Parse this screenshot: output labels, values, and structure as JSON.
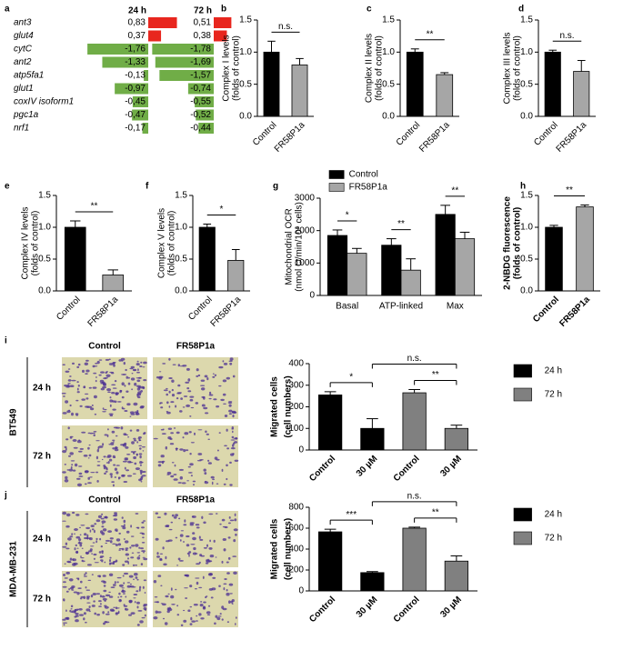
{
  "chart_data": [
    {
      "panel": "a",
      "type": "diverging-bar",
      "categories": [
        "ant3",
        "glut4",
        "cytC",
        "ant2",
        "atp5fa1",
        "glut1",
        "coxIV isoform1",
        "pgc1a",
        "nrf1"
      ],
      "series": [
        {
          "name": "24 h",
          "values": [
            0.83,
            0.37,
            -1.76,
            -1.33,
            -0.13,
            -0.97,
            -0.45,
            -0.47,
            -0.17
          ],
          "value_labels": [
            "0,83",
            "0,37",
            "-1,76",
            "-1,33",
            "-0,13",
            "-0,97",
            "-0,45",
            "-0,47",
            "-0,17"
          ]
        },
        {
          "name": "72 h",
          "values": [
            0.51,
            0.38,
            -1.78,
            -1.69,
            -1.57,
            -0.74,
            -0.55,
            -0.52,
            -0.44
          ],
          "value_labels": [
            "0,51",
            "0,38",
            "-1,78",
            "-1,69",
            "-1,57",
            "-0,74",
            "-0,55",
            "-0,52",
            "-0,44"
          ]
        }
      ],
      "positive_color": "#e8261e",
      "negative_color": "#70ad47"
    },
    {
      "panel": "b",
      "type": "bar",
      "ylabel": [
        "Complex I levels",
        "(folds of control)"
      ],
      "categories": [
        "Control",
        "FR58P1a"
      ],
      "values": [
        1.0,
        0.8
      ],
      "errors": [
        0.17,
        0.1
      ],
      "colors": [
        "#000000",
        "#a6a6a6"
      ],
      "ylim": [
        0,
        1.5
      ],
      "yticks": [
        {
          "value": 0,
          "label": "0.0"
        },
        {
          "value": 0.5,
          "label": "0.5"
        },
        {
          "value": 1,
          "label": "1.0"
        },
        {
          "value": 1.5,
          "label": "1.5"
        }
      ],
      "significance": [
        "n.s."
      ]
    },
    {
      "panel": "c",
      "type": "bar",
      "ylabel": [
        "Complex II levels",
        "(folds of control)"
      ],
      "categories": [
        "Control",
        "FR58P1a"
      ],
      "values": [
        1.0,
        0.65
      ],
      "errors": [
        0.05,
        0.03
      ],
      "colors": [
        "#000000",
        "#a6a6a6"
      ],
      "ylim": [
        0,
        1.5
      ],
      "yticks": [
        {
          "value": 0,
          "label": "0.0"
        },
        {
          "value": 0.5,
          "label": "0.5"
        },
        {
          "value": 1,
          "label": "1.0"
        },
        {
          "value": 1.5,
          "label": "1.5"
        }
      ],
      "significance": [
        "**"
      ]
    },
    {
      "panel": "d",
      "type": "bar",
      "ylabel": [
        "Complex III levels",
        "(folds of control)"
      ],
      "categories": [
        "Control",
        "FR58P1a"
      ],
      "values": [
        1.0,
        0.7
      ],
      "errors": [
        0.03,
        0.17
      ],
      "colors": [
        "#000000",
        "#a6a6a6"
      ],
      "ylim": [
        0,
        1.5
      ],
      "yticks": [
        {
          "value": 0,
          "label": "0.0"
        },
        {
          "value": 0.5,
          "label": "0.5"
        },
        {
          "value": 1,
          "label": "1.0"
        },
        {
          "value": 1.5,
          "label": "1.5"
        }
      ],
      "significance": [
        "n.s."
      ]
    },
    {
      "panel": "e",
      "type": "bar",
      "ylabel": [
        "Complex IV levels",
        "(folds of control)"
      ],
      "categories": [
        "Control",
        "FR58P1a"
      ],
      "values": [
        1.0,
        0.25
      ],
      "errors": [
        0.1,
        0.08
      ],
      "colors": [
        "#000000",
        "#a6a6a6"
      ],
      "ylim": [
        0,
        1.5
      ],
      "yticks": [
        {
          "value": 0,
          "label": "0.0"
        },
        {
          "value": 0.5,
          "label": "0.5"
        },
        {
          "value": 1,
          "label": "1.0"
        },
        {
          "value": 1.5,
          "label": "1.5"
        }
      ],
      "significance": [
        "**"
      ]
    },
    {
      "panel": "f",
      "type": "bar",
      "ylabel": [
        "Complex V levels",
        "(folds of control)"
      ],
      "categories": [
        "Control",
        "FR58P1a"
      ],
      "values": [
        1.0,
        0.48
      ],
      "errors": [
        0.05,
        0.17
      ],
      "colors": [
        "#000000",
        "#a6a6a6"
      ],
      "ylim": [
        0,
        1.5
      ],
      "yticks": [
        {
          "value": 0,
          "label": "0.0"
        },
        {
          "value": 0.5,
          "label": "0.5"
        },
        {
          "value": 1,
          "label": "1.0"
        },
        {
          "value": 1.5,
          "label": "1.5"
        }
      ],
      "significance": [
        "*"
      ]
    },
    {
      "panel": "g",
      "type": "bar",
      "ylabel": [
        "Mitochondrial OCR",
        "(nmol O/min/10⁶ cells)"
      ],
      "categories": [
        "Basal",
        "ATP-linked",
        "Max"
      ],
      "series": [
        {
          "name": "Control",
          "color": "#000000",
          "values": [
            1850,
            1550,
            2500
          ],
          "errors": [
            170,
            200,
            280
          ]
        },
        {
          "name": "FR58P1a",
          "color": "#a6a6a6",
          "values": [
            1300,
            780,
            1750
          ],
          "errors": [
            150,
            350,
            200
          ]
        }
      ],
      "ylim": [
        0,
        3000
      ],
      "yticks": [
        0,
        1000,
        2000,
        3000
      ],
      "legend": "top",
      "significance": [
        "*",
        "**",
        "**"
      ]
    },
    {
      "panel": "h",
      "type": "bar",
      "ylabel": [
        "2-NBDG fluorescence",
        "(folds of control)"
      ],
      "categories": [
        "Control",
        "FR58P1a"
      ],
      "values": [
        1.0,
        1.32
      ],
      "errors": [
        0.03,
        0.03
      ],
      "colors": [
        "#000000",
        "#a6a6a6"
      ],
      "ylim": [
        0,
        1.5
      ],
      "yticks": [
        {
          "value": 0,
          "label": "0.0"
        },
        {
          "value": 0.5,
          "label": "0.5"
        },
        {
          "value": 1,
          "label": "1.0"
        },
        {
          "value": 1.5,
          "label": "1.5"
        }
      ],
      "significance": [
        "**"
      ]
    },
    {
      "panel": "i",
      "type": "bar",
      "cell_line": "BT549",
      "image_columns": [
        "Control",
        "FR58P1a"
      ],
      "image_rows": [
        "24 h",
        "72 h"
      ],
      "ylabel": [
        "Migrated cells",
        "(cell numbers)"
      ],
      "categories": [
        "Control",
        "30 µM",
        "Control",
        "30 µM"
      ],
      "series": [
        {
          "name": "24 h",
          "color": "#000000",
          "values": [
            255,
            100,
            null,
            null
          ],
          "errors": [
            15,
            45,
            null,
            null
          ]
        },
        {
          "name": "72 h",
          "color": "#808080",
          "values": [
            null,
            null,
            265,
            100
          ],
          "errors": [
            null,
            null,
            15,
            15
          ]
        }
      ],
      "ylim": [
        0,
        400
      ],
      "yticks": [
        0,
        100,
        200,
        300,
        400
      ],
      "legend": "right",
      "significance": [
        "*",
        "**",
        "n.s."
      ]
    },
    {
      "panel": "j",
      "type": "bar",
      "cell_line": "MDA-MB-231",
      "image_columns": [
        "Control",
        "FR58P1a"
      ],
      "image_rows": [
        "24 h",
        "72 h"
      ],
      "ylabel": [
        "Migrated cells",
        "(cell numbers)"
      ],
      "categories": [
        "Control",
        "30 µM",
        "Control",
        "30 µM"
      ],
      "series": [
        {
          "name": "24 h",
          "color": "#000000",
          "values": [
            565,
            175,
            null,
            null
          ],
          "errors": [
            25,
            10,
            null,
            null
          ]
        },
        {
          "name": "72 h",
          "color": "#808080",
          "values": [
            null,
            null,
            600,
            285
          ],
          "errors": [
            null,
            null,
            10,
            50
          ]
        }
      ],
      "ylim": [
        0,
        800
      ],
      "yticks": [
        0,
        200,
        400,
        600,
        800
      ],
      "legend": "right",
      "significance": [
        "***",
        "**",
        "n.s."
      ]
    }
  ]
}
